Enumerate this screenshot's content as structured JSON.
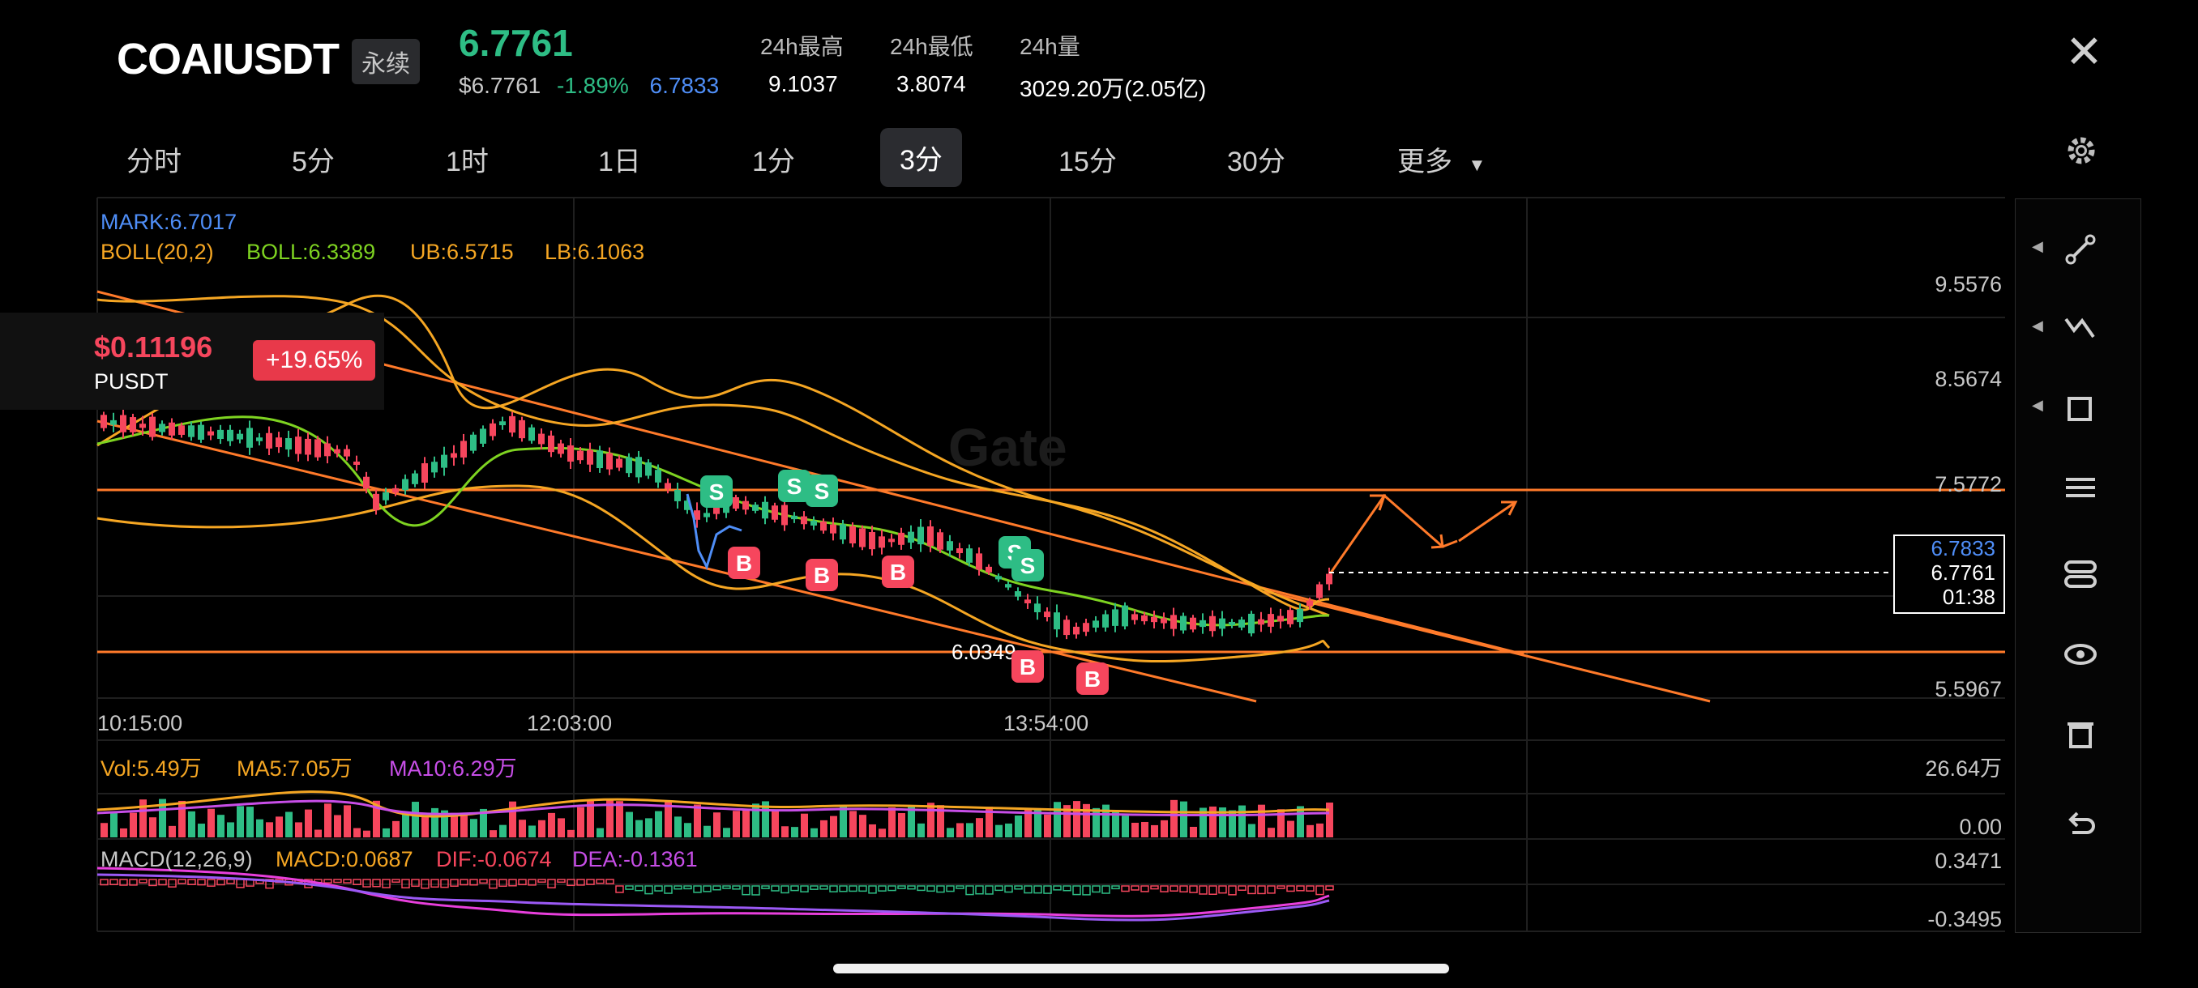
{
  "header": {
    "symbol": "COAIUSDT",
    "contract_type": "永续",
    "last_price": "6.7761",
    "usd_price": "$6.7761",
    "change_pct": "-1.89%",
    "mark_price": "6.7833",
    "stats": [
      {
        "label": "24h最高",
        "value": "9.1037"
      },
      {
        "label": "24h最低",
        "value": "3.8074"
      },
      {
        "label": "24h量",
        "value": "3029.20万(2.05亿)"
      }
    ],
    "close_icon": "close-icon"
  },
  "tabs": {
    "items": [
      "分时",
      "5分",
      "1时",
      "1日",
      "1分",
      "3分",
      "15分",
      "30分",
      "更多"
    ],
    "active": "3分",
    "settings_icon": "gear-icon"
  },
  "overlay": {
    "price": "$0.11196",
    "name": "PUSDT",
    "change": "+19.65%"
  },
  "indicators": {
    "mark": "MARK:6.7017",
    "boll_params": "BOLL(20,2)",
    "boll": "BOLL:6.3389",
    "ub": "UB:6.5715",
    "lb": "LB:6.1063",
    "vol": "Vol:5.49万",
    "ma5": "MA5:7.05万",
    "ma10": "MA10:6.29万",
    "macd_params": "MACD(12,26,9)",
    "macd": "MACD:0.0687",
    "dif": "DIF:-0.0674",
    "dea": "DEA:-0.1361"
  },
  "axes": {
    "price_ticks": [
      "9.5576",
      "8.5674",
      "7.5772",
      "5.5967"
    ],
    "time_ticks": [
      "10:15:00",
      "12:03:00",
      "13:54:00"
    ],
    "vol_ticks": [
      "26.64万",
      "0.00"
    ],
    "macd_ticks": [
      "0.3471",
      "-0.3495"
    ],
    "low_label": "6.0349"
  },
  "price_box": {
    "mark": "6.7833",
    "last": "6.7761",
    "countdown": "01:38"
  },
  "colors": {
    "up": "#2ebd85",
    "down": "#f6465d",
    "accent_blue": "#4f8ef7",
    "boll_mid": "#7ed321",
    "boll_band": "#f5a623",
    "trendline": "#ff7a2a",
    "ma10": "#c74ee7"
  },
  "toolbar": [
    "line-tool-icon",
    "trend-tool-icon",
    "shape-tool-icon",
    "adjust-icon",
    "toggle-icon",
    "eye-icon",
    "trash-icon",
    "undo-icon"
  ],
  "watermark": "Gate",
  "trade_markers": [
    "S",
    "B"
  ]
}
